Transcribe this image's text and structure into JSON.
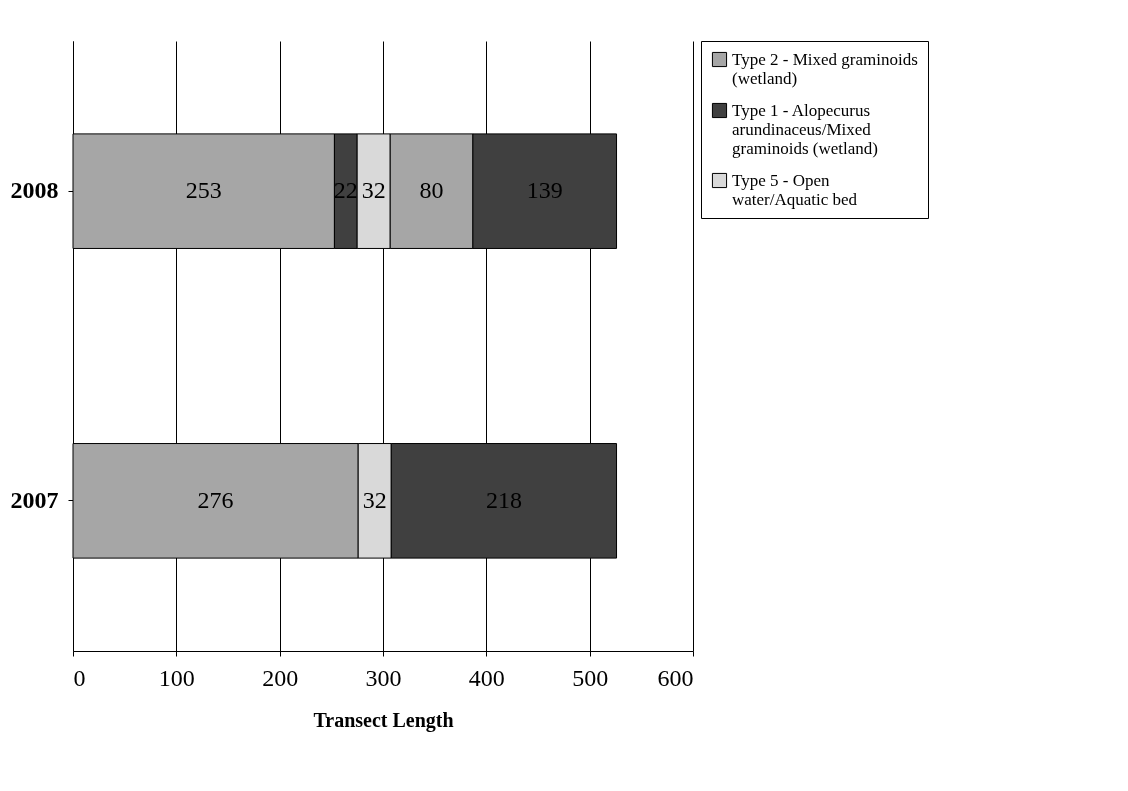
{
  "chart_data": {
    "type": "bar",
    "orientation": "horizontal",
    "stacked": true,
    "xlabel": "Transect Length",
    "categories": [
      "2008",
      "2007"
    ],
    "series": [
      {
        "name": "Type 2 - Mixed graminoids (wetland)",
        "color": "#a6a6a6",
        "values": [
          253,
          276
        ]
      },
      {
        "name": "Type 1 - Alopecurus arundinaceus/Mixed graminoids (wetland)",
        "color": "#404040",
        "values": [
          22,
          null
        ]
      },
      {
        "name": "Type 5 - Open water/Aquatic bed",
        "color": "#d9d9d9",
        "values": [
          32,
          32
        ]
      },
      {
        "color": "#a6a6a6",
        "values": [
          80,
          null
        ]
      },
      {
        "color": "#404040",
        "values": [
          139,
          218
        ]
      }
    ],
    "xlim": [
      0,
      600
    ],
    "xticks": [
      0,
      100,
      200,
      300,
      400,
      500,
      600
    ],
    "grid": "x",
    "legend": "right",
    "data_labels": true
  }
}
